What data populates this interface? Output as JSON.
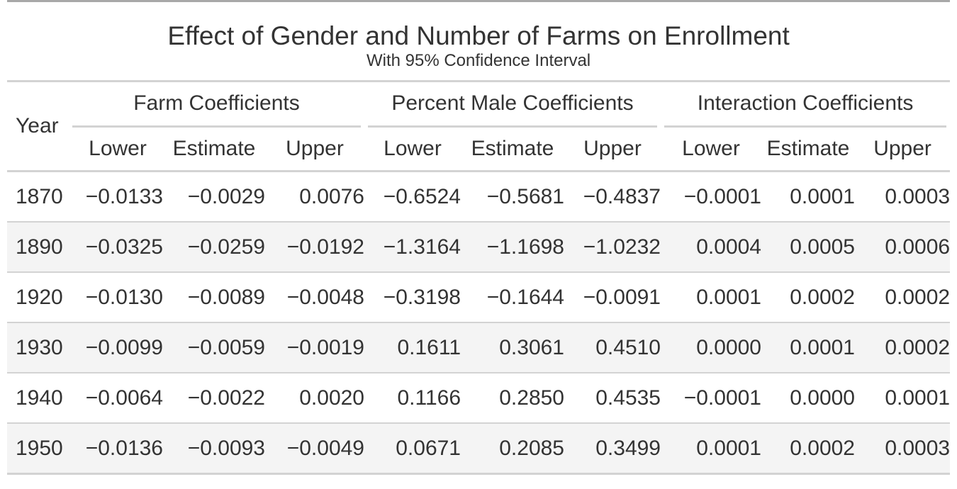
{
  "table": {
    "title": "Effect of Gender and Number of Farms on Enrollment",
    "subtitle": "With 95% Confidence Interval",
    "stub_header": "Year",
    "spanners": [
      "Farm Coefficients",
      "Percent Male Coefficients",
      "Interaction Coefficients"
    ],
    "columns": [
      "Lower",
      "Estimate",
      "Upper",
      "Lower",
      "Estimate",
      "Upper",
      "Lower",
      "Estimate",
      "Upper"
    ],
    "rows": [
      {
        "year": "1870",
        "values": [
          "−0.0133",
          "−0.0029",
          "0.0076",
          "−0.6524",
          "−0.5681",
          "−0.4837",
          "−0.0001",
          "0.0001",
          "0.0003"
        ]
      },
      {
        "year": "1890",
        "values": [
          "−0.0325",
          "−0.0259",
          "−0.0192",
          "−1.3164",
          "−1.1698",
          "−1.0232",
          "0.0004",
          "0.0005",
          "0.0006"
        ]
      },
      {
        "year": "1920",
        "values": [
          "−0.0130",
          "−0.0089",
          "−0.0048",
          "−0.3198",
          "−0.1644",
          "−0.0091",
          "0.0001",
          "0.0002",
          "0.0002"
        ]
      },
      {
        "year": "1930",
        "values": [
          "−0.0099",
          "−0.0059",
          "−0.0019",
          "0.1611",
          "0.3061",
          "0.4510",
          "0.0000",
          "0.0001",
          "0.0002"
        ]
      },
      {
        "year": "1940",
        "values": [
          "−0.0064",
          "−0.0022",
          "0.0020",
          "0.1166",
          "0.2850",
          "0.4535",
          "−0.0001",
          "0.0000",
          "0.0001"
        ]
      },
      {
        "year": "1950",
        "values": [
          "−0.0136",
          "−0.0093",
          "−0.0049",
          "0.0671",
          "0.2085",
          "0.3499",
          "0.0001",
          "0.0002",
          "0.0003"
        ]
      }
    ]
  }
}
